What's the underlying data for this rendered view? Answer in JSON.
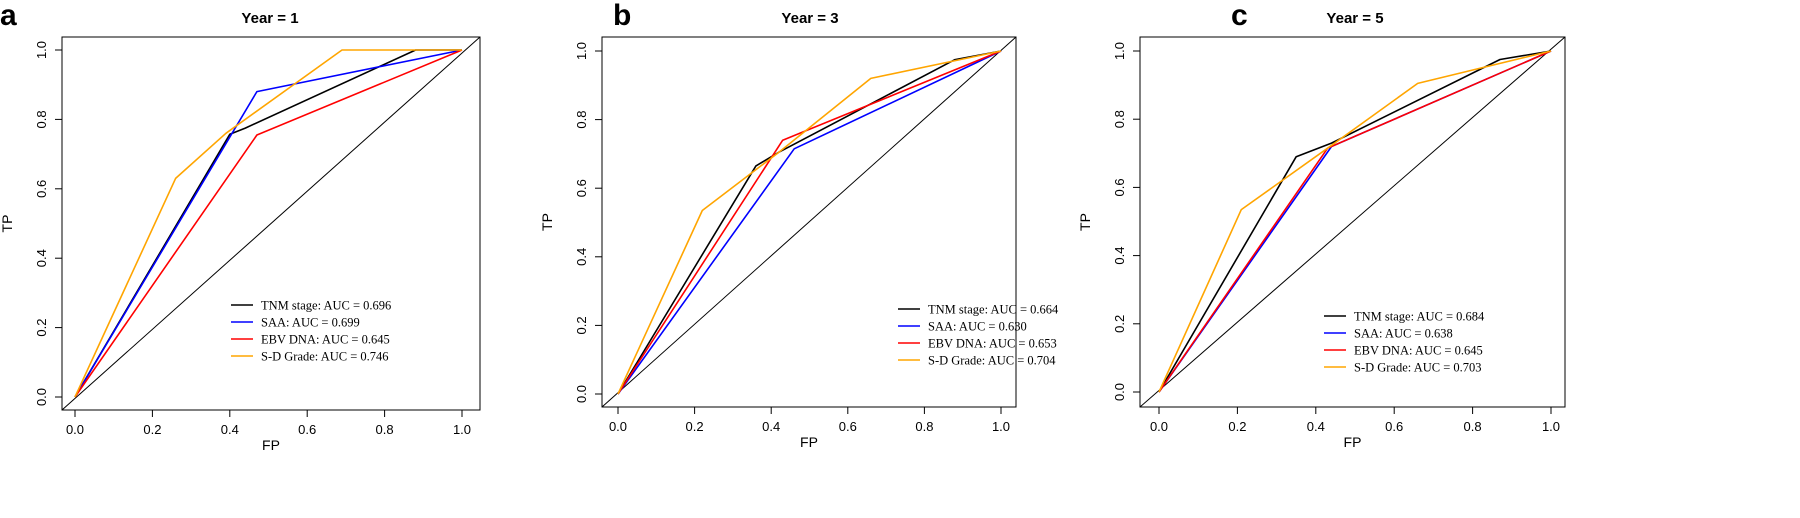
{
  "colors": {
    "TNM stage": "#000000",
    "SAA": "#0000ff",
    "EBV DNA": "#ff0000",
    "S-D Grade": "#ffa500",
    "reference": "#000000"
  },
  "chart_data": [
    {
      "panel": "a",
      "type": "line",
      "title": "Year = 1",
      "xlabel": "FP",
      "ylabel": "TP",
      "xlim": [
        0,
        1
      ],
      "ylim": [
        0,
        1
      ],
      "xticks": [
        "0.0",
        "0.2",
        "0.4",
        "0.6",
        "0.8",
        "1.0"
      ],
      "yticks": [
        "0.0",
        "0.2",
        "0.4",
        "0.6",
        "0.8",
        "1.0"
      ],
      "grid": false,
      "legend_position": "bottom-right",
      "reference_line": true,
      "series": [
        {
          "name": "TNM stage",
          "legend": "TNM stage: AUC = 0.696",
          "points": [
            [
              0,
              0
            ],
            [
              0.4,
              0.757
            ],
            [
              0.44,
              0.775
            ],
            [
              0.88,
              1.0
            ],
            [
              1,
              1
            ]
          ]
        },
        {
          "name": "SAA",
          "legend": "SAA: AUC = 0.699",
          "points": [
            [
              0,
              0
            ],
            [
              0.47,
              0.88
            ],
            [
              1,
              1
            ]
          ]
        },
        {
          "name": "EBV DNA",
          "legend": "EBV DNA: AUC = 0.645",
          "points": [
            [
              0,
              0
            ],
            [
              0.47,
              0.755
            ],
            [
              1,
              1
            ]
          ]
        },
        {
          "name": "S-D Grade",
          "legend": "S-D Grade: AUC = 0.746",
          "points": [
            [
              0,
              0
            ],
            [
              0.26,
              0.63
            ],
            [
              0.39,
              0.76
            ],
            [
              0.69,
              1.0
            ],
            [
              1,
              1
            ]
          ]
        }
      ]
    },
    {
      "panel": "b",
      "type": "line",
      "title": "Year = 3",
      "xlabel": "FP",
      "ylabel": "TP",
      "xlim": [
        0,
        1
      ],
      "ylim": [
        0,
        1
      ],
      "xticks": [
        "0.0",
        "0.2",
        "0.4",
        "0.6",
        "0.8",
        "1.0"
      ],
      "yticks": [
        "0.0",
        "0.2",
        "0.4",
        "0.6",
        "0.8",
        "1.0"
      ],
      "grid": false,
      "legend_position": "bottom-right",
      "reference_line": true,
      "series": [
        {
          "name": "TNM stage",
          "legend": "TNM stage: AUC = 0.664",
          "points": [
            [
              0,
              0
            ],
            [
              0.36,
              0.665
            ],
            [
              0.42,
              0.705
            ],
            [
              0.88,
              0.975
            ],
            [
              1,
              1
            ]
          ]
        },
        {
          "name": "SAA",
          "legend": "SAA: AUC = 0.630",
          "points": [
            [
              0,
              0
            ],
            [
              0.46,
              0.715
            ],
            [
              1,
              1
            ]
          ]
        },
        {
          "name": "EBV DNA",
          "legend": "EBV DNA: AUC = 0.653",
          "points": [
            [
              0,
              0
            ],
            [
              0.43,
              0.74
            ],
            [
              1,
              1
            ]
          ]
        },
        {
          "name": "S-D Grade",
          "legend": "S-D Grade: AUC = 0.704",
          "points": [
            [
              0,
              0
            ],
            [
              0.22,
              0.535
            ],
            [
              0.42,
              0.705
            ],
            [
              0.66,
              0.92
            ],
            [
              1,
              1
            ]
          ]
        }
      ]
    },
    {
      "panel": "c",
      "type": "line",
      "title": "Year = 5",
      "xlabel": "FP",
      "ylabel": "TP",
      "xlim": [
        0,
        1
      ],
      "ylim": [
        0,
        1
      ],
      "xticks": [
        "0.0",
        "0.2",
        "0.4",
        "0.6",
        "0.8",
        "1.0"
      ],
      "yticks": [
        "0.0",
        "0.2",
        "0.4",
        "0.6",
        "0.8",
        "1.0"
      ],
      "grid": false,
      "legend_position": "bottom-right",
      "reference_line": true,
      "series": [
        {
          "name": "TNM stage",
          "legend": "TNM stage: AUC = 0.684",
          "points": [
            [
              0,
              0
            ],
            [
              0.35,
              0.69
            ],
            [
              0.44,
              0.73
            ],
            [
              0.87,
              0.975
            ],
            [
              1,
              1
            ]
          ]
        },
        {
          "name": "SAA",
          "legend": "SAA: AUC = 0.638",
          "points": [
            [
              0,
              0
            ],
            [
              0.44,
              0.72
            ],
            [
              1,
              1
            ]
          ]
        },
        {
          "name": "EBV DNA",
          "legend": "EBV DNA: AUC = 0.645",
          "points": [
            [
              0,
              0
            ],
            [
              0.43,
              0.715
            ],
            [
              1,
              1
            ]
          ]
        },
        {
          "name": "S-D Grade",
          "legend": "S-D Grade: AUC = 0.703",
          "points": [
            [
              0,
              0
            ],
            [
              0.21,
              0.535
            ],
            [
              0.43,
              0.715
            ],
            [
              0.66,
              0.905
            ],
            [
              1,
              1
            ]
          ]
        }
      ]
    }
  ]
}
